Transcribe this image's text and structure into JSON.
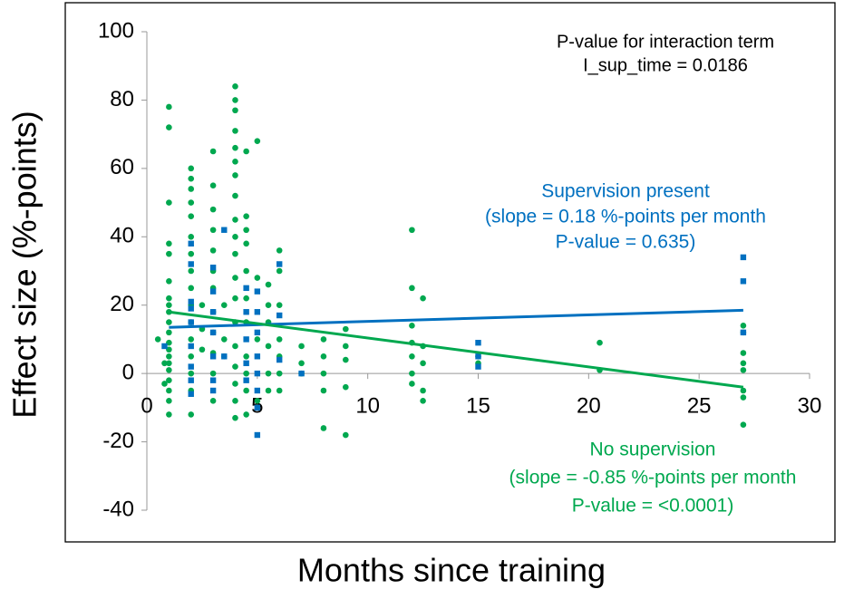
{
  "chart_data": {
    "type": "scatter",
    "xlabel": "Months since training",
    "ylabel": "Effect size (%-points)",
    "annotations": [
      {
        "lines": [
          "P-value for interaction term",
          "I_sup_time = 0.0186"
        ],
        "color": "#000000"
      },
      {
        "lines": [
          "Supervision present",
          "(slope = 0.18 %-points per month",
          "P-value = 0.635)"
        ],
        "color": "#0070c0"
      },
      {
        "lines": [
          "No supervision",
          "(slope = -0.85 %-points per month",
          "P-value = <0.0001)"
        ],
        "color": "#00a84f"
      }
    ],
    "xlim": [
      0,
      30
    ],
    "xticks": [
      0,
      5,
      10,
      15,
      20,
      25,
      30
    ],
    "ylim": [
      -40,
      100
    ],
    "yticks": [
      -40,
      -20,
      0,
      20,
      40,
      60,
      80,
      100
    ],
    "series": [
      {
        "color": "#00a84f",
        "marker": "circle",
        "x": [
          0.5,
          1,
          1,
          1,
          1,
          1,
          1,
          1,
          1,
          1,
          1,
          1,
          1,
          1,
          1,
          1,
          1,
          1,
          1,
          1,
          1,
          0.8,
          0.8,
          2,
          2,
          2,
          2,
          2,
          2,
          2,
          2,
          2,
          2,
          2,
          2,
          2,
          2,
          2,
          2,
          2.5,
          2.5,
          2.5,
          3,
          3,
          3,
          3,
          3,
          3,
          3,
          3,
          3,
          3,
          3,
          3,
          3.5,
          3.5,
          3.5,
          4,
          4,
          4,
          4,
          4,
          4,
          4,
          4,
          4,
          4,
          4,
          4,
          4,
          4,
          4,
          4,
          4,
          4,
          4,
          4.5,
          4.5,
          4.5,
          4.5,
          4.5,
          4.5,
          4.5,
          4.5,
          4.5,
          4.5,
          4.5,
          5,
          5,
          5,
          5,
          5.5,
          5.5,
          5.5,
          5.5,
          5.5,
          5.5,
          6,
          6,
          6,
          6,
          6,
          6,
          6,
          7,
          7,
          7,
          8,
          8,
          8,
          8,
          8,
          9,
          9,
          9,
          9,
          9,
          12,
          12,
          12,
          12,
          12,
          12,
          12,
          12.5,
          12.5,
          12.5,
          12.5,
          12.5,
          15,
          15,
          20.5,
          20.5,
          27,
          27,
          27,
          27,
          27,
          27,
          27,
          27
        ],
        "values": [
          10,
          78,
          72,
          50,
          38,
          35,
          27,
          22,
          20,
          18,
          15,
          12,
          9,
          7,
          5,
          3,
          1,
          -2,
          -5,
          -8,
          -12,
          3,
          -3,
          60,
          57,
          54,
          50,
          46,
          40,
          35,
          30,
          25,
          20,
          15,
          10,
          5,
          0,
          -5,
          -12,
          7,
          13,
          20,
          65,
          55,
          48,
          42,
          36,
          30,
          25,
          18,
          12,
          6,
          0,
          -8,
          20,
          10,
          5,
          84,
          80,
          77,
          71,
          66,
          62,
          58,
          52,
          45,
          40,
          35,
          28,
          22,
          15,
          8,
          2,
          -3,
          -8,
          -13,
          65,
          46,
          42,
          38,
          30,
          22,
          15,
          5,
          0,
          -5,
          -12,
          68,
          28,
          10,
          -8,
          26,
          20,
          15,
          8,
          0,
          -5,
          36,
          30,
          20,
          10,
          5,
          0,
          -5,
          8,
          3,
          0,
          10,
          5,
          0,
          -5,
          -16,
          13,
          8,
          4,
          -4,
          -18,
          42,
          25,
          14,
          9,
          5,
          0,
          -3,
          22,
          8,
          3,
          -5,
          -8,
          5,
          3,
          9,
          1,
          14,
          12,
          6,
          3,
          1,
          -5,
          -7,
          -15
        ]
      },
      {
        "color": "#0070c0",
        "marker": "square",
        "x": [
          0.8,
          2,
          2,
          2,
          2,
          2,
          2,
          2,
          2,
          2,
          3,
          3,
          3,
          3,
          3,
          3,
          3,
          3.5,
          3.5,
          4.5,
          4.5,
          4.5,
          4.5,
          4.5,
          5,
          5,
          5,
          5,
          5,
          5,
          5,
          5,
          6,
          6,
          6,
          7,
          15,
          15,
          15,
          27,
          27,
          27
        ],
        "values": [
          8,
          38,
          32,
          21,
          19,
          15,
          8,
          2,
          -2,
          -6,
          31,
          24,
          18,
          12,
          5,
          -2,
          -5,
          42,
          5,
          25,
          18,
          10,
          3,
          -2,
          24,
          18,
          12,
          5,
          0,
          -5,
          -10,
          -18,
          32,
          17,
          4,
          0,
          9,
          5,
          2,
          34,
          27,
          12
        ]
      }
    ],
    "fit_lines": [
      {
        "color": "#0070c0",
        "x": [
          1,
          27
        ],
        "values": [
          13.5,
          18.5
        ]
      },
      {
        "color": "#00a84f",
        "x": [
          1,
          27
        ],
        "values": [
          18,
          -4
        ]
      }
    ]
  }
}
